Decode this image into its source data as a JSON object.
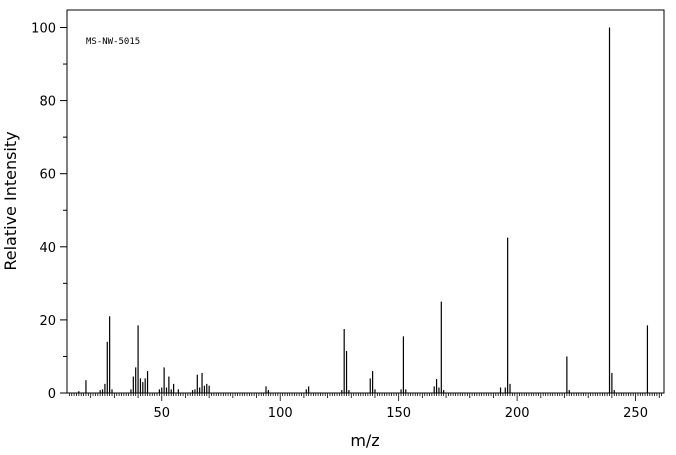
{
  "chart_data": {
    "type": "bar",
    "annotation": "MS-NW-5015",
    "xlabel": "m/z",
    "ylabel": "Relative Intensity",
    "xlim": [
      10,
      262
    ],
    "ylim": [
      0,
      105
    ],
    "x_major_ticks": [
      50,
      100,
      150,
      200,
      250
    ],
    "y_major_ticks": [
      0,
      20,
      40,
      60,
      80,
      100
    ],
    "x_tick_labels": [
      "50",
      "100",
      "150",
      "200",
      "250"
    ],
    "y_tick_labels": [
      "0",
      "20",
      "40",
      "60",
      "80",
      "100"
    ],
    "grid": false,
    "bar_color": "#000000",
    "peaks": [
      {
        "x": 15,
        "y": 0.5
      },
      {
        "x": 18,
        "y": 3.5
      },
      {
        "x": 24,
        "y": 0.8
      },
      {
        "x": 25,
        "y": 1.0
      },
      {
        "x": 26,
        "y": 2.5
      },
      {
        "x": 27,
        "y": 14.0
      },
      {
        "x": 28,
        "y": 21.0
      },
      {
        "x": 29,
        "y": 1.0
      },
      {
        "x": 37,
        "y": 1.0
      },
      {
        "x": 38,
        "y": 4.5
      },
      {
        "x": 39,
        "y": 7.0
      },
      {
        "x": 40,
        "y": 18.5
      },
      {
        "x": 41,
        "y": 4.0
      },
      {
        "x": 42,
        "y": 3.0
      },
      {
        "x": 43,
        "y": 4.0
      },
      {
        "x": 44,
        "y": 6.0
      },
      {
        "x": 49,
        "y": 1.0
      },
      {
        "x": 50,
        "y": 1.5
      },
      {
        "x": 51,
        "y": 7.0
      },
      {
        "x": 52,
        "y": 1.5
      },
      {
        "x": 53,
        "y": 4.5
      },
      {
        "x": 54,
        "y": 1.0
      },
      {
        "x": 55,
        "y": 2.5
      },
      {
        "x": 57,
        "y": 1.0
      },
      {
        "x": 63,
        "y": 0.8
      },
      {
        "x": 64,
        "y": 1.0
      },
      {
        "x": 65,
        "y": 5.0
      },
      {
        "x": 66,
        "y": 1.5
      },
      {
        "x": 67,
        "y": 5.5
      },
      {
        "x": 68,
        "y": 2.0
      },
      {
        "x": 69,
        "y": 2.5
      },
      {
        "x": 70,
        "y": 2.0
      },
      {
        "x": 94,
        "y": 1.8
      },
      {
        "x": 95,
        "y": 0.8
      },
      {
        "x": 111,
        "y": 1.0
      },
      {
        "x": 112,
        "y": 1.8
      },
      {
        "x": 126,
        "y": 0.8
      },
      {
        "x": 127,
        "y": 17.5
      },
      {
        "x": 128,
        "y": 11.5
      },
      {
        "x": 129,
        "y": 0.8
      },
      {
        "x": 138,
        "y": 4.0
      },
      {
        "x": 139,
        "y": 6.0
      },
      {
        "x": 140,
        "y": 1.0
      },
      {
        "x": 151,
        "y": 1.0
      },
      {
        "x": 152,
        "y": 15.5
      },
      {
        "x": 153,
        "y": 1.0
      },
      {
        "x": 165,
        "y": 1.8
      },
      {
        "x": 166,
        "y": 3.8
      },
      {
        "x": 167,
        "y": 1.5
      },
      {
        "x": 168,
        "y": 25.0
      },
      {
        "x": 169,
        "y": 0.8
      },
      {
        "x": 193,
        "y": 1.5
      },
      {
        "x": 195,
        "y": 1.5
      },
      {
        "x": 196,
        "y": 42.5
      },
      {
        "x": 197,
        "y": 2.5
      },
      {
        "x": 221,
        "y": 10.0
      },
      {
        "x": 222,
        "y": 0.8
      },
      {
        "x": 239,
        "y": 100.0
      },
      {
        "x": 240,
        "y": 5.5
      },
      {
        "x": 241,
        "y": 0.8
      },
      {
        "x": 255,
        "y": 18.5
      }
    ]
  }
}
